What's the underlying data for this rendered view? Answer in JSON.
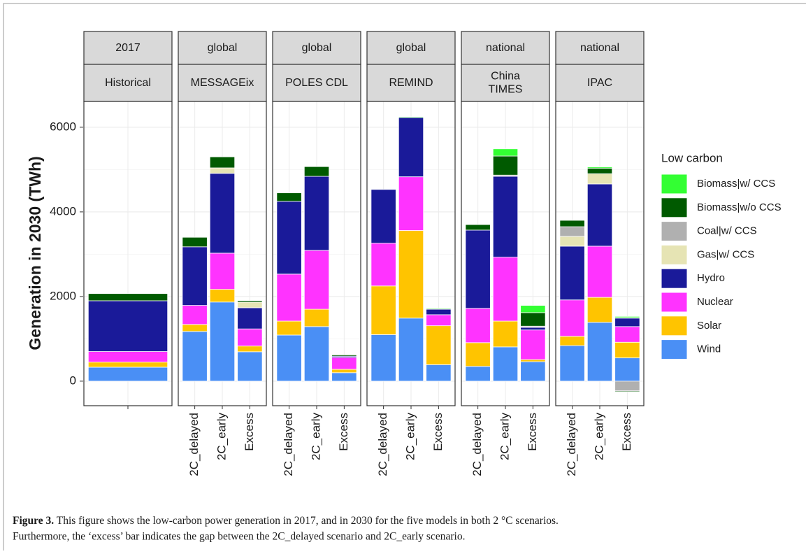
{
  "chart_data": {
    "type": "bar",
    "stacked": true,
    "y_label": "Generation in 2030 (TWh)",
    "ylim": [
      -580,
      6610
    ],
    "yticks": [
      0,
      2000,
      4000,
      6000
    ],
    "grid": true,
    "legend_title": "Low carbon",
    "legend_position": "right",
    "series": [
      {
        "name": "Biomass|w/ CCS",
        "color": "#33ff33"
      },
      {
        "name": "Biomass|w/o CCS",
        "color": "#005a00"
      },
      {
        "name": "Coal|w/ CCS",
        "color": "#b0b0b0"
      },
      {
        "name": "Gas|w/ CCS",
        "color": "#e6e4b4"
      },
      {
        "name": "Hydro",
        "color": "#1a1a99"
      },
      {
        "name": "Nuclear",
        "color": "#ff33ff"
      },
      {
        "name": "Solar",
        "color": "#ffc400"
      },
      {
        "name": "Wind",
        "color": "#4a8ff5"
      }
    ],
    "facets": [
      {
        "strip_top": "2017",
        "strip_bottom": [
          "Historical"
        ],
        "categories": [
          null
        ],
        "values": [
          [
            0
          ],
          [
            170
          ],
          [
            0
          ],
          [
            0
          ],
          [
            1200
          ],
          [
            250
          ],
          [
            120
          ],
          [
            330
          ]
        ]
      },
      {
        "strip_top": "global",
        "strip_bottom": [
          "MESSAGEix"
        ],
        "categories": [
          "2C_delayed",
          "2C_early",
          "Excess"
        ],
        "values": [
          [
            0,
            0,
            0
          ],
          [
            225,
            260,
            35
          ],
          [
            0,
            0,
            0
          ],
          [
            0,
            130,
            130
          ],
          [
            1385,
            1885,
            500
          ],
          [
            450,
            855,
            405
          ],
          [
            165,
            300,
            135
          ],
          [
            1175,
            1870,
            695
          ]
        ]
      },
      {
        "strip_top": "global",
        "strip_bottom": [
          "POLES CDL"
        ],
        "categories": [
          "2C_delayed",
          "2C_early",
          "Excess"
        ],
        "values": [
          [
            0,
            0,
            0
          ],
          [
            200,
            230,
            30
          ],
          [
            0,
            0,
            0
          ],
          [
            0,
            0,
            0
          ],
          [
            1720,
            1750,
            30
          ],
          [
            1110,
            1390,
            280
          ],
          [
            330,
            410,
            80
          ],
          [
            1090,
            1290,
            200
          ]
        ]
      },
      {
        "strip_top": "global",
        "strip_bottom": [
          "REMIND"
        ],
        "categories": [
          "2C_delayed",
          "2C_early",
          "Excess"
        ],
        "values": [
          [
            0,
            20,
            20
          ],
          [
            0,
            0,
            0
          ],
          [
            0,
            0,
            0
          ],
          [
            0,
            0,
            0
          ],
          [
            1270,
            1400,
            130
          ],
          [
            1010,
            1270,
            260
          ],
          [
            1150,
            2070,
            920
          ],
          [
            1100,
            1490,
            390
          ]
        ]
      },
      {
        "strip_top": "national",
        "strip_bottom": [
          "China",
          "TIMES"
        ],
        "categories": [
          "2C_delayed",
          "2C_early",
          "Excess"
        ],
        "values": [
          [
            0,
            170,
            170
          ],
          [
            130,
            450,
            320
          ],
          [
            0,
            30,
            30
          ],
          [
            0,
            0,
            0
          ],
          [
            1850,
            1910,
            60
          ],
          [
            810,
            1510,
            700
          ],
          [
            560,
            610,
            50
          ],
          [
            350,
            810,
            460
          ]
        ]
      },
      {
        "strip_top": "national",
        "strip_bottom": [
          "IPAC"
        ],
        "categories": [
          "2C_delayed",
          "2C_early",
          "Excess"
        ],
        "values": [
          [
            0,
            30,
            30
          ],
          [
            150,
            130,
            -20
          ],
          [
            230,
            0,
            -230
          ],
          [
            230,
            240,
            10
          ],
          [
            1270,
            1470,
            200
          ],
          [
            860,
            1210,
            370
          ],
          [
            220,
            590,
            370
          ],
          [
            840,
            1390,
            550
          ]
        ]
      }
    ]
  },
  "caption": {
    "label": "Figure 3.",
    "lines": [
      " This figure shows the low-carbon power generation in 2017, and in 2030 for the five models in both 2 °C scenarios.",
      "Furthermore, the ‘excess’ bar indicates the gap between the 2C_delayed scenario and 2C_early scenario."
    ]
  }
}
